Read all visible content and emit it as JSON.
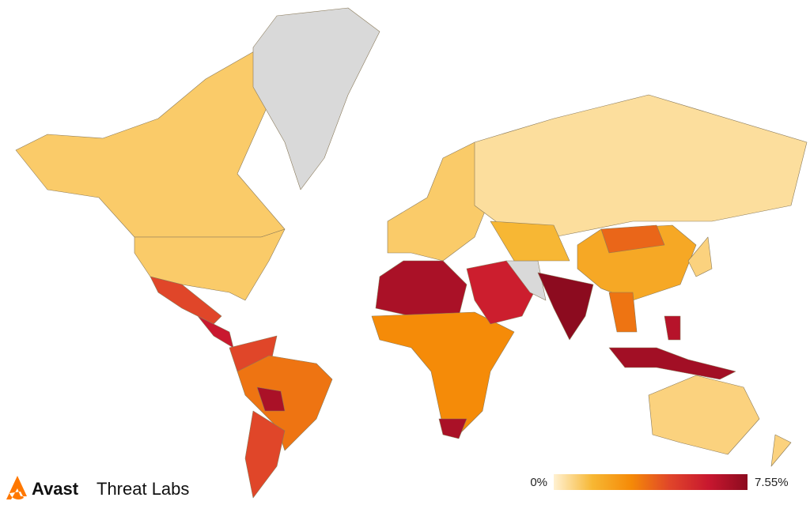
{
  "brand": {
    "name": "Avast",
    "product": "Threat Labs"
  },
  "legend": {
    "min": {
      "value": 0,
      "label": "0%"
    },
    "max": {
      "value": 7.55,
      "label": "7.55%"
    },
    "colors": [
      "#fff1d2",
      "#f7b733",
      "#f58a07",
      "#e0452a",
      "#c8172f",
      "#8c0b1f"
    ]
  },
  "no_data_color": "#d9d9d9",
  "regions": [
    1.0,
    1.0,
    4.5,
    6.0,
    null,
    4.5,
    3.5,
    6.8,
    4.5,
    1.0,
    0.5,
    6.8,
    3.0,
    6.8,
    5.8,
    null,
    7.55,
    2.0,
    3.8,
    3.5,
    7.0,
    6.5,
    0.8,
    0.8,
    0.8,
    1.5
  ]
}
